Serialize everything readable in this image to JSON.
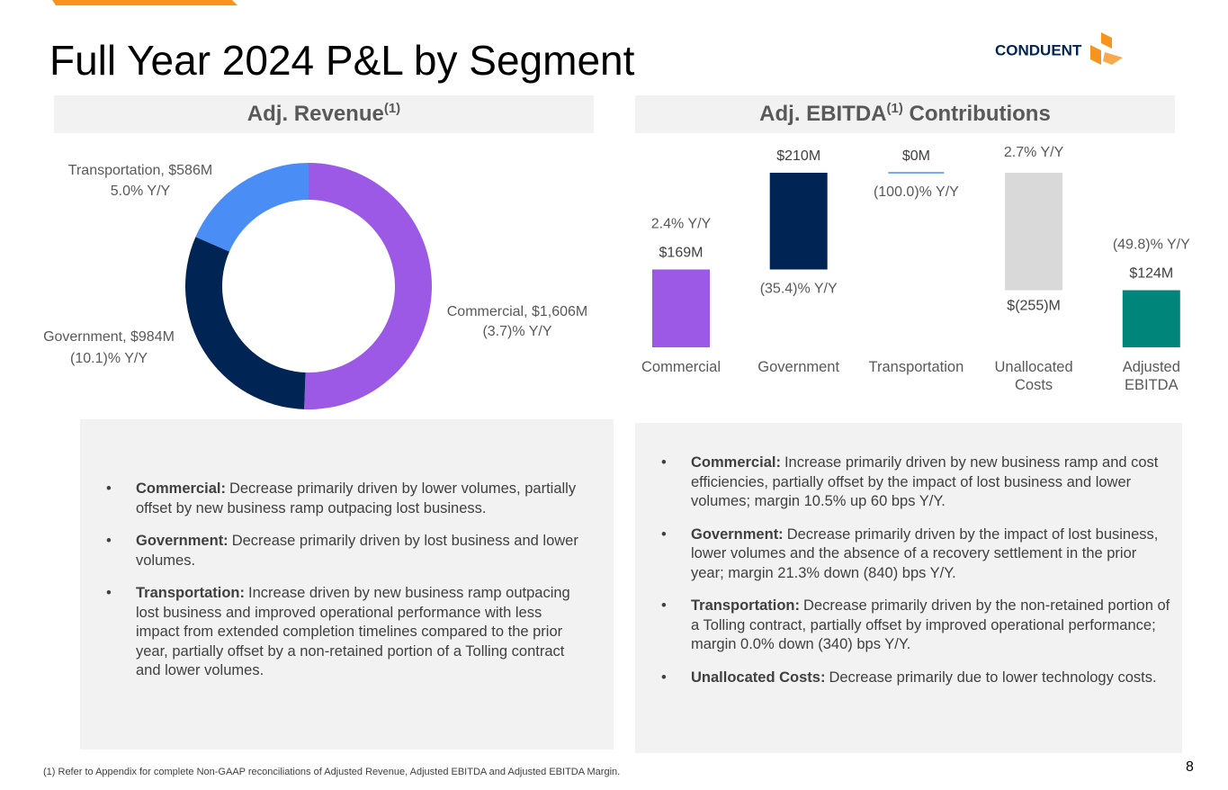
{
  "title": "Full Year 2024 P&L by Segment",
  "logo": "CONDUENT",
  "chart_data": [
    {
      "type": "donut",
      "title": "Adj. Revenue",
      "title_note": "(1)",
      "labels": [
        "Commercial, $1,606M",
        "Government, $984M",
        "Transportation, $586M"
      ],
      "values": [
        1606,
        984,
        586
      ],
      "changes": [
        "(3.7)% Y/Y",
        "(10.1)% Y/Y",
        "5.0% Y/Y"
      ],
      "colors": [
        "#9b59e6",
        "#002554",
        "#4a8ef5"
      ]
    },
    {
      "type": "waterfall",
      "title": "Adj. EBITDA",
      "title_note": "(1)",
      "title_suffix": "Contributions",
      "categories": [
        "Commercial",
        "Government",
        "Transportation",
        "Unallocated Costs",
        "Adjusted EBITDA"
      ],
      "values": [
        169,
        210,
        0,
        -255,
        124
      ],
      "value_labels": [
        "$169M",
        "$210M",
        "$0M",
        "$(255)M",
        "$124M"
      ],
      "changes": [
        "2.4% Y/Y",
        "(35.4)% Y/Y",
        "(100.0)% Y/Y",
        "2.7% Y/Y",
        "(49.8)% Y/Y"
      ],
      "colors": [
        "#9b59e6",
        "#002554",
        "#4a8ef5",
        "#d9d9d9",
        "#00857a"
      ]
    }
  ],
  "bullets_left": [
    {
      "label": "Commercial:",
      "text": "Decrease primarily driven by lower volumes, partially offset by new business ramp outpacing lost business."
    },
    {
      "label": "Government:",
      "text": "Decrease primarily driven by lost business and lower volumes."
    },
    {
      "label": "Transportation:",
      "text": "Increase driven by new business ramp outpacing lost business and improved operational performance with less impact from extended completion timelines compared to the prior year, partially offset by a non-retained portion of a Tolling contract and lower volumes."
    }
  ],
  "bullets_right": [
    {
      "label": "Commercial:",
      "text": "Increase primarily driven by new business ramp and cost efficiencies, partially offset by the impact of lost business and lower volumes; margin 10.5% up 60 bps Y/Y."
    },
    {
      "label": "Government:",
      "text": "Decrease primarily driven by the impact of lost business, lower volumes and the absence of a recovery settlement in the prior year; margin 21.3% down (840) bps Y/Y."
    },
    {
      "label": "Transportation:",
      "text": "Decrease primarily driven by the non-retained portion of a Tolling contract, partially offset by improved operational performance; margin 0.0% down (340) bps Y/Y."
    },
    {
      "label": "Unallocated Costs:",
      "text": "Decrease primarily due to lower technology costs."
    }
  ],
  "footnote": "(1) Refer to Appendix for complete Non-GAAP reconciliations of Adjusted Revenue, Adjusted EBITDA and Adjusted EBITDA Margin.",
  "page_number": "8"
}
